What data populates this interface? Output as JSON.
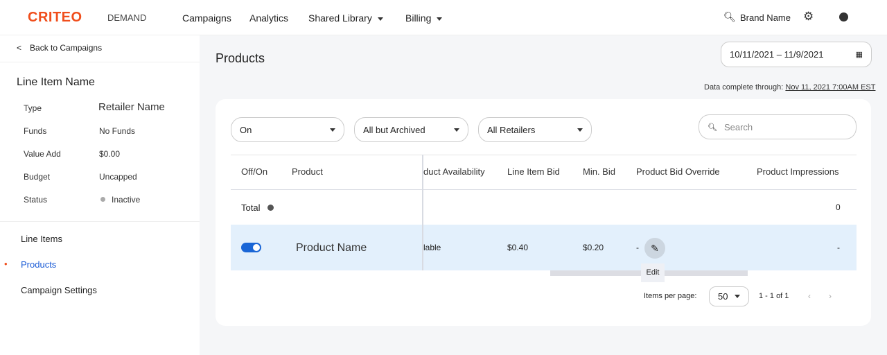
{
  "header": {
    "logo": "CRITEO",
    "product": "DEMAND",
    "nav": [
      "Campaigns",
      "Analytics",
      "Shared Library",
      "Billing"
    ],
    "brand": "Brand Name"
  },
  "sidebar": {
    "back": "Back to Campaigns",
    "title": "Line Item Name",
    "details": [
      {
        "k": "Type",
        "v": "Retailer Name"
      },
      {
        "k": "Funds",
        "v": "No Funds"
      },
      {
        "k": "Value Add",
        "v": "$0.00"
      },
      {
        "k": "Budget",
        "v": "Uncapped"
      },
      {
        "k": "Status",
        "v": "Inactive"
      }
    ],
    "links": [
      "Line Items",
      "Products",
      "Campaign Settings"
    ]
  },
  "main": {
    "title": "Products",
    "date_range": "10/11/2021 – 11/9/2021",
    "data_complete_label": "Data complete through:",
    "data_complete_value": "Nov 11, 2021 7:00AM EST",
    "filters": [
      "On",
      "All but Archived",
      "All Retailers"
    ],
    "search_placeholder": "Search",
    "columns": [
      "Off/On",
      "Product",
      "duct Availability",
      "Line Item Bid",
      "Min. Bid",
      "Product Bid Override",
      "Product Impressions"
    ],
    "total": {
      "label": "Total",
      "impressions": "0"
    },
    "row": {
      "on": true,
      "product": "Product Name",
      "availability": "lable",
      "line_item_bid": "$0.40",
      "min_bid": "$0.20",
      "override": "-",
      "impressions": "-"
    },
    "tooltip": "Edit",
    "pagination": {
      "label": "Items per page:",
      "size": "50",
      "range": "1 - 1 of 1"
    }
  }
}
